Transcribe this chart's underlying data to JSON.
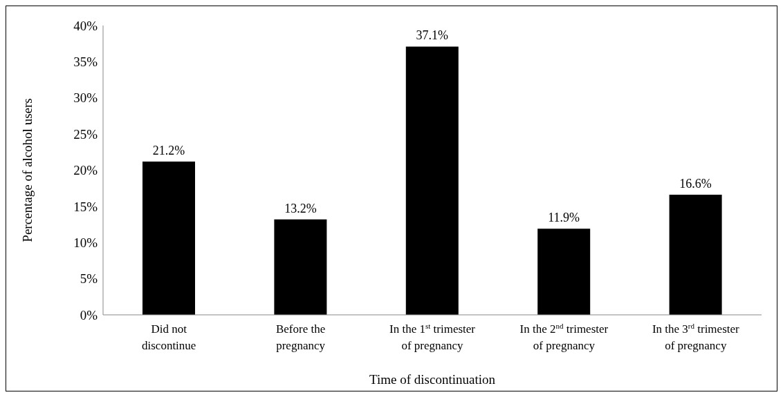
{
  "chart_data": {
    "type": "bar",
    "xlabel": "Time of discontinuation",
    "ylabel": "Percentage of alcohol users",
    "categories": [
      "Did not\ndiscontinue",
      "Before the\npregnancy",
      "In the 1$^{st}$ trimester\nof pregnancy",
      "In the 2$^{nd}$ trimester\nof pregnancy",
      "In the 3$^{rd}$ trimester\nof pregnancy"
    ],
    "values": [
      21.2,
      13.2,
      37.1,
      11.9,
      16.6
    ],
    "value_labels": [
      "21.2%",
      "13.2%",
      "37.1%",
      "11.9%",
      "16.6%"
    ],
    "color": "#000000",
    "ylim": [
      0,
      40
    ],
    "yticks": [
      {
        "value": 0,
        "label": "0%"
      },
      {
        "value": 5,
        "label": "5%"
      },
      {
        "value": 10,
        "label": "10%"
      },
      {
        "value": 15,
        "label": "15%"
      },
      {
        "value": 20,
        "label": "20%"
      },
      {
        "value": 25,
        "label": "25%"
      },
      {
        "value": 30,
        "label": "30%"
      },
      {
        "value": 35,
        "label": "35%"
      },
      {
        "value": 40,
        "label": "40%"
      }
    ],
    "grid": false,
    "legend": false
  }
}
